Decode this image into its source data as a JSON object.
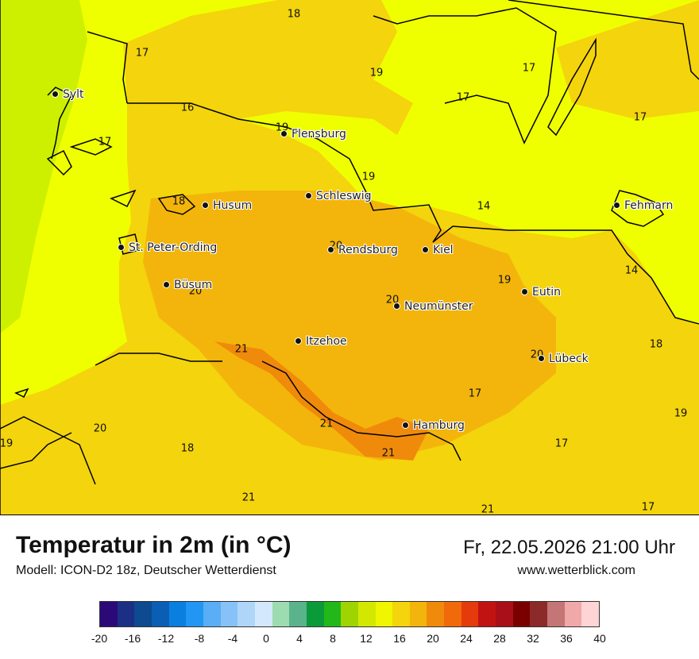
{
  "title": "Temperatur in 2m (in °C)",
  "subtitle": "Modell: ICON-D2 18z, Deutscher Wetterdienst",
  "datetime": "Fr, 22.05.2026 21:00 Uhr",
  "website": "www.wetterblick.com",
  "cities": [
    "Sylt",
    "Flensburg",
    "Husum",
    "Schleswig",
    "St. Peter-Ording",
    "Rendsburg",
    "Kiel",
    "Fehmarn",
    "Büsum",
    "Neumünster",
    "Eutin",
    "Itzehoe",
    "Lübeck",
    "Hamburg"
  ],
  "isolines": [
    "18",
    "17",
    "19",
    "16",
    "17",
    "19",
    "17",
    "17",
    "17",
    "19",
    "18",
    "14",
    "20",
    "20",
    "19",
    "14",
    "20",
    "21",
    "20",
    "18",
    "17",
    "21",
    "20",
    "19",
    "19",
    "18",
    "21",
    "17",
    "21",
    "21",
    "17"
  ],
  "legend": {
    "ticks": [
      "-20",
      "-16",
      "-12",
      "-8",
      "-4",
      "0",
      "4",
      "8",
      "12",
      "16",
      "20",
      "24",
      "28",
      "32",
      "36",
      "40"
    ],
    "colors": [
      "#2b0a78",
      "#1b2f85",
      "#0d4a8f",
      "#0a5fb5",
      "#0a7fe0",
      "#2196f3",
      "#5aaef5",
      "#86c2f7",
      "#afd6f9",
      "#d3e8fb",
      "#9ddcb0",
      "#5ab38a",
      "#0a9a3a",
      "#22b81a",
      "#9fd400",
      "#d3e800",
      "#f0f500",
      "#f4d40c",
      "#f3b50b",
      "#f08a0b",
      "#f06a0b",
      "#e53a0b",
      "#c21313",
      "#a80f18",
      "#7a0000",
      "#8c2a2a",
      "#c47575",
      "#f0a8a8",
      "#ffd4d4"
    ],
    "map_colors": {
      "sea": "#f0ff00",
      "land": "#f4d40c",
      "warm": "#f3b50b",
      "hot": "#f08a0b",
      "cold": "#cdf000"
    }
  }
}
